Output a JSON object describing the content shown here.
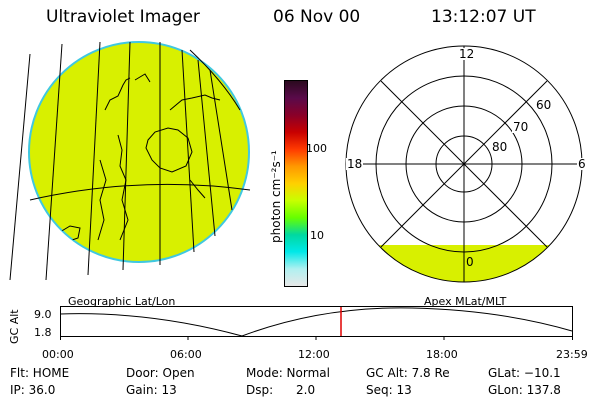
{
  "header": {
    "instrument": "Ultraviolet Imager",
    "date": "06 Nov 00",
    "time": "13:12:07 UT"
  },
  "colorbar": {
    "unit_label": "photon cm⁻²s⁻¹",
    "ticks": [
      "100",
      "10"
    ],
    "scale": "log",
    "colors": [
      "#2b0a1f",
      "#5a0a4a",
      "#8a0028",
      "#c80000",
      "#ff3a00",
      "#ff9900",
      "#ffd000",
      "#c8ff00",
      "#66ff00",
      "#00d8a0",
      "#00e8e8",
      "#b0f0f0",
      "#e8e8e8"
    ]
  },
  "polar_grid": {
    "mlt_labels": [
      "12",
      "18",
      "6",
      "0"
    ],
    "lat_labels": [
      "60",
      "70",
      "80"
    ]
  },
  "orbit_plot": {
    "left_title": "Geographic Lat/Lon",
    "right_title": "Apex MLat/MLT",
    "ylabel": "GC Alt",
    "ytick_top": "9.0",
    "ytick_bottom": "1.8",
    "xticks": [
      "00:00",
      "06:00",
      "12:00",
      "18:00",
      "23:59"
    ],
    "current_time_color": "#e00000"
  },
  "info": {
    "flt": "Flt: HOME",
    "ip": "IP: 36.0",
    "door": "Door: Open",
    "gain": "Gain: 13",
    "mode": "Mode: Normal",
    "dsp": "Dsp:      2.0",
    "gcalt": "GC Alt: 7.8 Re",
    "seq": "Seq: 13",
    "glat": "GLat: −10.1",
    "glon": "GLon: 137.8"
  },
  "colors": {
    "image_fill": "#d8f000",
    "image_edge": "#40c8e0",
    "marker": "#e00000"
  }
}
